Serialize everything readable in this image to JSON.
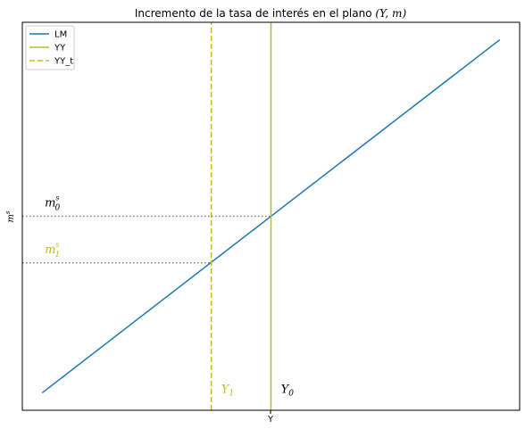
{
  "chart_data": {
    "type": "line",
    "title": "Incremento de la tasa de interés en el plano (Y, m)",
    "title_plain": "Incremento de la tasa de interés en el plano ",
    "title_math": "(Y, m)",
    "xlabel": "Y",
    "ylabel": "m^s",
    "xlim": [
      0,
      100
    ],
    "ylim": [
      0,
      100
    ],
    "grid": false,
    "legend_position": "top-left",
    "series": [
      {
        "name": "LM",
        "style": "solid",
        "color": "#1f77b4",
        "x": [
          4,
          96
        ],
        "y": [
          4.5,
          95.5
        ]
      },
      {
        "name": "YY",
        "style": "solid",
        "color": "#bcbd22",
        "x": [
          50,
          50
        ],
        "y": [
          0,
          100
        ]
      },
      {
        "name": "YY_t",
        "style": "dashed",
        "color": "#bcbd22",
        "x": [
          38,
          38
        ],
        "y": [
          0,
          100
        ]
      }
    ],
    "reference_lines": [
      {
        "name": "m0",
        "style": "dotted",
        "color": "#808080",
        "x": [
          0,
          50
        ],
        "y": [
          50,
          50
        ]
      },
      {
        "name": "m1",
        "style": "dotted",
        "color": "#808080",
        "x": [
          0,
          38
        ],
        "y": [
          38,
          38
        ]
      }
    ],
    "annotations": [
      {
        "name": "m0-label",
        "base": "m",
        "sub": "0",
        "sup": "s",
        "x": 4.5,
        "y": 52.5,
        "color": "#000000"
      },
      {
        "name": "m1-label",
        "base": "m",
        "sub": "1",
        "sup": "s",
        "x": 4.5,
        "y": 40.5,
        "color": "#bcbd22"
      },
      {
        "name": "y1-label",
        "base": "Y",
        "sub": "1",
        "x": 40,
        "y": 4.5,
        "color": "#bcbd22"
      },
      {
        "name": "y0-label",
        "base": "Y",
        "sub": "0",
        "x": 52,
        "y": 4.5,
        "color": "#000000"
      }
    ]
  }
}
